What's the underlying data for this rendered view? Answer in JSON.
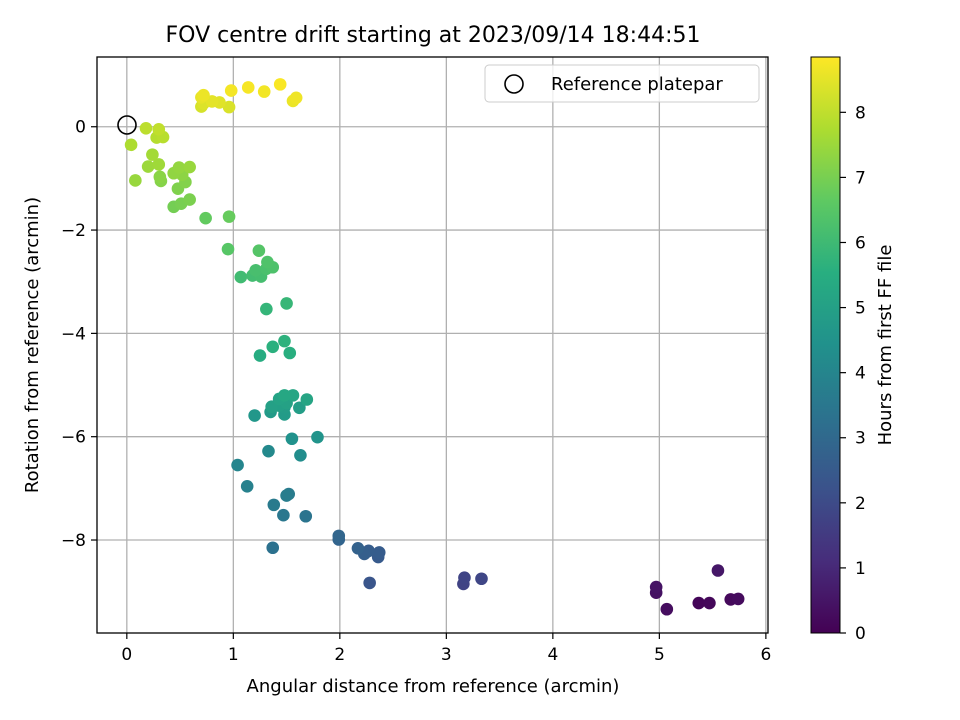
{
  "chart_data": {
    "type": "scatter",
    "title": "FOV centre drift starting at 2023/09/14 18:44:51",
    "xlabel": "Angular distance from reference (arcmin)",
    "ylabel": "Rotation from reference (arcmin)",
    "xlim": [
      -0.28,
      6.02
    ],
    "ylim": [
      -9.8,
      1.35
    ],
    "xticks": [
      "0",
      "1",
      "2",
      "3",
      "4",
      "5",
      "6"
    ],
    "yticks": [
      "0",
      "−2",
      "−4",
      "−6",
      "−8"
    ],
    "grid": true,
    "legend": {
      "position": "top-right",
      "label": "Reference platepar",
      "marker": "open-circle"
    },
    "reference_point": {
      "x": 0,
      "y": 0
    },
    "colorbar": {
      "label": "Hours from first FF file",
      "colormap": "viridis",
      "range": [
        0,
        8.85
      ],
      "ticks": [
        "0",
        "1",
        "2",
        "3",
        "4",
        "5",
        "6",
        "7",
        "8"
      ]
    },
    "series": [
      {
        "marker": "filled-circle",
        "points": [
          {
            "x": 5.37,
            "y": -9.22,
            "c": 0.1
          },
          {
            "x": 5.47,
            "y": -9.22,
            "c": 0.15
          },
          {
            "x": 5.67,
            "y": -9.15,
            "c": 0.2
          },
          {
            "x": 5.74,
            "y": -9.14,
            "c": 0.25
          },
          {
            "x": 5.07,
            "y": -9.34,
            "c": 0.3
          },
          {
            "x": 4.97,
            "y": -9.02,
            "c": 0.4
          },
          {
            "x": 4.97,
            "y": -8.91,
            "c": 0.45
          },
          {
            "x": 5.55,
            "y": -8.59,
            "c": 0.55
          },
          {
            "x": 3.16,
            "y": -8.85,
            "c": 1.75
          },
          {
            "x": 3.17,
            "y": -8.73,
            "c": 1.8
          },
          {
            "x": 3.33,
            "y": -8.75,
            "c": 1.85
          },
          {
            "x": 2.28,
            "y": -8.83,
            "c": 2.3
          },
          {
            "x": 2.36,
            "y": -8.33,
            "c": 2.5
          },
          {
            "x": 2.37,
            "y": -8.24,
            "c": 2.55
          },
          {
            "x": 2.27,
            "y": -8.21,
            "c": 2.6
          },
          {
            "x": 2.23,
            "y": -8.27,
            "c": 2.65
          },
          {
            "x": 2.17,
            "y": -8.16,
            "c": 2.75
          },
          {
            "x": 1.99,
            "y": -7.99,
            "c": 2.85
          },
          {
            "x": 1.99,
            "y": -7.92,
            "c": 2.9
          },
          {
            "x": 1.37,
            "y": -8.15,
            "c": 3.3
          },
          {
            "x": 1.68,
            "y": -7.54,
            "c": 3.4
          },
          {
            "x": 1.47,
            "y": -7.52,
            "c": 3.5
          },
          {
            "x": 1.38,
            "y": -7.32,
            "c": 3.6
          },
          {
            "x": 1.52,
            "y": -7.11,
            "c": 3.65
          },
          {
            "x": 1.5,
            "y": -7.14,
            "c": 3.7
          },
          {
            "x": 1.13,
            "y": -6.96,
            "c": 3.85
          },
          {
            "x": 1.04,
            "y": -6.55,
            "c": 4.0
          },
          {
            "x": 1.33,
            "y": -6.28,
            "c": 4.15
          },
          {
            "x": 1.63,
            "y": -6.36,
            "c": 4.3
          },
          {
            "x": 1.55,
            "y": -6.04,
            "c": 4.45
          },
          {
            "x": 1.79,
            "y": -6.01,
            "c": 4.55
          },
          {
            "x": 1.2,
            "y": -5.59,
            "c": 4.65
          },
          {
            "x": 1.35,
            "y": -5.52,
            "c": 4.75
          },
          {
            "x": 1.48,
            "y": -5.57,
            "c": 4.8
          },
          {
            "x": 1.48,
            "y": -5.43,
            "c": 4.85
          },
          {
            "x": 1.62,
            "y": -5.44,
            "c": 4.9
          },
          {
            "x": 1.43,
            "y": -5.4,
            "c": 4.95
          },
          {
            "x": 1.36,
            "y": -5.42,
            "c": 5.0
          },
          {
            "x": 1.5,
            "y": -5.35,
            "c": 5.05
          },
          {
            "x": 1.43,
            "y": -5.27,
            "c": 5.1
          },
          {
            "x": 1.69,
            "y": -5.28,
            "c": 5.15
          },
          {
            "x": 1.56,
            "y": -5.2,
            "c": 5.2
          },
          {
            "x": 1.48,
            "y": -5.2,
            "c": 5.25
          },
          {
            "x": 1.25,
            "y": -4.43,
            "c": 5.45
          },
          {
            "x": 1.53,
            "y": -4.38,
            "c": 5.55
          },
          {
            "x": 1.37,
            "y": -4.26,
            "c": 5.6
          },
          {
            "x": 1.48,
            "y": -4.15,
            "c": 5.65
          },
          {
            "x": 1.31,
            "y": -3.53,
            "c": 5.8
          },
          {
            "x": 1.5,
            "y": -3.42,
            "c": 5.85
          },
          {
            "x": 1.07,
            "y": -2.91,
            "c": 6.05
          },
          {
            "x": 1.18,
            "y": -2.88,
            "c": 6.1
          },
          {
            "x": 1.26,
            "y": -2.9,
            "c": 6.15
          },
          {
            "x": 1.21,
            "y": -2.78,
            "c": 6.2
          },
          {
            "x": 1.31,
            "y": -2.75,
            "c": 6.25
          },
          {
            "x": 1.37,
            "y": -2.72,
            "c": 6.3
          },
          {
            "x": 1.32,
            "y": -2.62,
            "c": 6.35
          },
          {
            "x": 1.24,
            "y": -2.4,
            "c": 6.45
          },
          {
            "x": 0.95,
            "y": -2.37,
            "c": 6.5
          },
          {
            "x": 0.74,
            "y": -1.77,
            "c": 6.7
          },
          {
            "x": 0.96,
            "y": -1.74,
            "c": 6.75
          },
          {
            "x": 0.44,
            "y": -1.55,
            "c": 6.95
          },
          {
            "x": 0.51,
            "y": -1.49,
            "c": 7.0
          },
          {
            "x": 0.59,
            "y": -1.41,
            "c": 7.05
          },
          {
            "x": 0.48,
            "y": -1.2,
            "c": 7.1
          },
          {
            "x": 0.55,
            "y": -1.07,
            "c": 7.15
          },
          {
            "x": 0.32,
            "y": -1.05,
            "c": 7.2
          },
          {
            "x": 0.31,
            "y": -0.97,
            "c": 7.25
          },
          {
            "x": 0.52,
            "y": -0.93,
            "c": 7.3
          },
          {
            "x": 0.44,
            "y": -0.9,
            "c": 7.35
          },
          {
            "x": 0.49,
            "y": -0.79,
            "c": 7.4
          },
          {
            "x": 0.59,
            "y": -0.78,
            "c": 7.45
          },
          {
            "x": 0.2,
            "y": -0.77,
            "c": 7.5
          },
          {
            "x": 0.3,
            "y": -0.73,
            "c": 7.55
          },
          {
            "x": 0.24,
            "y": -0.54,
            "c": 7.6
          },
          {
            "x": 0.08,
            "y": -1.04,
            "c": 7.45
          },
          {
            "x": 0.04,
            "y": -0.35,
            "c": 7.75
          },
          {
            "x": 0.28,
            "y": -0.21,
            "c": 7.85
          },
          {
            "x": 0.34,
            "y": -0.2,
            "c": 7.9
          },
          {
            "x": 0.18,
            "y": -0.03,
            "c": 7.95
          },
          {
            "x": 0.3,
            "y": -0.05,
            "c": 8.0
          },
          {
            "x": 0.7,
            "y": 0.39,
            "c": 8.3
          },
          {
            "x": 0.96,
            "y": 0.38,
            "c": 8.35
          },
          {
            "x": 0.72,
            "y": 0.45,
            "c": 8.4
          },
          {
            "x": 0.87,
            "y": 0.47,
            "c": 8.45
          },
          {
            "x": 0.8,
            "y": 0.49,
            "c": 8.5
          },
          {
            "x": 0.7,
            "y": 0.57,
            "c": 8.55
          },
          {
            "x": 1.56,
            "y": 0.5,
            "c": 8.6
          },
          {
            "x": 0.72,
            "y": 0.61,
            "c": 8.62
          },
          {
            "x": 1.59,
            "y": 0.56,
            "c": 8.65
          },
          {
            "x": 1.29,
            "y": 0.68,
            "c": 8.7
          },
          {
            "x": 0.98,
            "y": 0.7,
            "c": 8.72
          },
          {
            "x": 1.14,
            "y": 0.76,
            "c": 8.76
          },
          {
            "x": 1.44,
            "y": 0.82,
            "c": 8.8
          }
        ]
      }
    ]
  }
}
